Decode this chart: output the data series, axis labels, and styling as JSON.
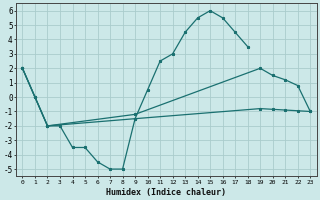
{
  "xlabel": "Humidex (Indice chaleur)",
  "bg_color": "#cce8e8",
  "grid_color": "#aacccc",
  "line_color": "#1a7070",
  "xlim": [
    -0.5,
    23.5
  ],
  "ylim": [
    -5.5,
    6.5
  ],
  "xticks": [
    0,
    1,
    2,
    3,
    4,
    5,
    6,
    7,
    8,
    9,
    10,
    11,
    12,
    13,
    14,
    15,
    16,
    17,
    18,
    19,
    20,
    21,
    22,
    23
  ],
  "yticks": [
    -5,
    -4,
    -3,
    -2,
    -1,
    0,
    1,
    2,
    3,
    4,
    5,
    6
  ],
  "wavy_x": [
    0,
    1,
    2,
    3,
    4,
    5,
    6,
    7,
    8,
    9,
    10,
    11,
    12,
    13,
    14,
    15,
    16,
    17,
    18
  ],
  "wavy_y": [
    2.0,
    0.0,
    -2.0,
    -2.0,
    -3.5,
    -3.5,
    -4.5,
    -5.0,
    -5.0,
    -1.5,
    0.5,
    2.5,
    3.0,
    4.5,
    5.5,
    6.0,
    5.5,
    4.5,
    3.5
  ],
  "upper_x": [
    0,
    1,
    2,
    9,
    19,
    20,
    21,
    22,
    23
  ],
  "upper_y": [
    2.0,
    0.0,
    -2.0,
    -1.2,
    2.0,
    1.5,
    1.2,
    0.8,
    -1.0
  ],
  "lower_x": [
    0,
    1,
    2,
    9,
    19,
    20,
    21,
    22,
    23
  ],
  "lower_y": [
    2.0,
    0.0,
    -2.0,
    -1.5,
    -0.8,
    -0.85,
    -0.9,
    -0.95,
    -1.0
  ]
}
